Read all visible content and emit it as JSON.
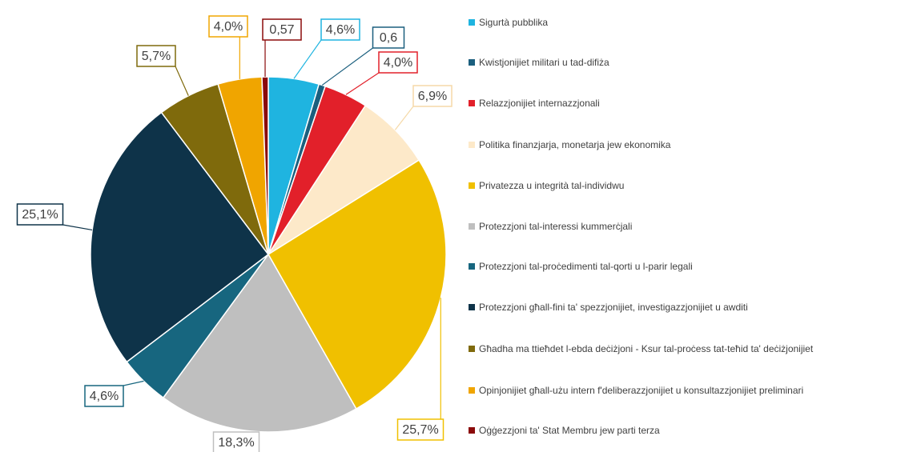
{
  "chart_data": {
    "type": "pie",
    "categories": [
      "Sigurtà pubblika",
      "Kwistjonijiet militari u tad-difiża",
      "Relazzjonijiet internazzjonali",
      "Politika finanzjarja, monetarja jew ekonomika",
      "Privatezza u integrità tal-individwu",
      "Protezzjoni tal-interessi kummerċjali",
      "Protezzjoni tal-proċedimenti tal-qorti u l-parir legali",
      "Protezzjoni għall-fini ta' spezzjonijiet, investigazzjonijiet u awditi",
      "Għadha ma ttieħdet l-ebda deċiżjoni - Ksur tal-proċess tat-teħid ta' deċiżjonijiet",
      "Opinjonijiet għall-użu intern f'deliberazzjonijiet u konsultazzjonijiet preliminari",
      "Oġġezzjoni ta' Stat Membru jew parti terza"
    ],
    "values": [
      4.6,
      0.6,
      4.0,
      6.9,
      25.7,
      18.3,
      4.6,
      25.1,
      5.7,
      4.0,
      0.57
    ],
    "value_labels": [
      "4,6%",
      "0,6",
      "4,0%",
      "6,9%",
      "25,7%",
      "18,3%",
      "4,6%",
      "25,1%",
      "5,7%",
      "4,0%",
      "0,57"
    ],
    "colors": [
      "#1fb4e0",
      "#1b5f7e",
      "#e2202a",
      "#fde9c9",
      "#f0c000",
      "#bfbfbf",
      "#17667f",
      "#0e3349",
      "#7f6a0c",
      "#f0a500",
      "#8b0a0a"
    ],
    "legend": "right"
  }
}
